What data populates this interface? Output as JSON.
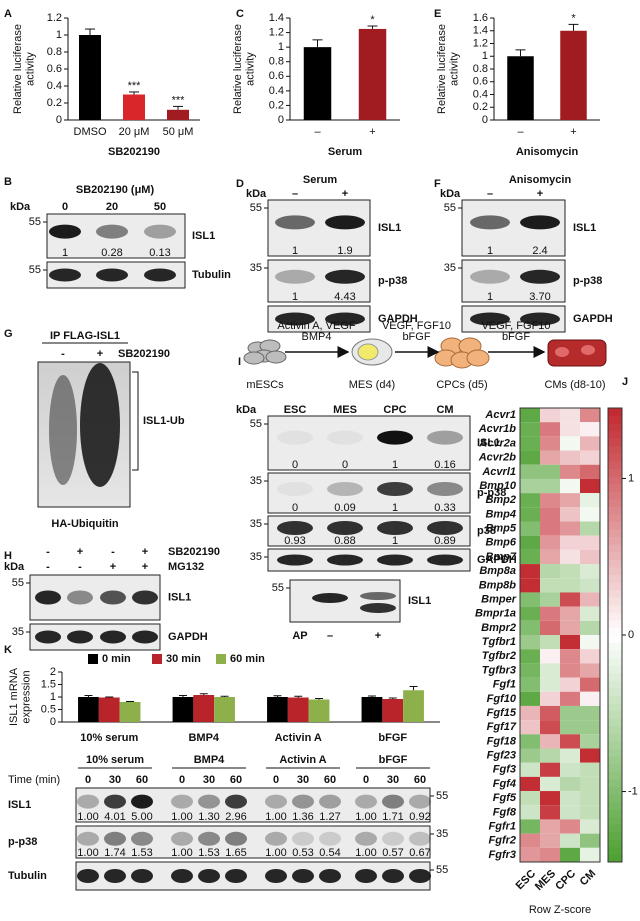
{
  "panel_labels": [
    "A",
    "B",
    "C",
    "D",
    "E",
    "F",
    "G",
    "H",
    "I",
    "J",
    "K"
  ],
  "chart_data": [
    {
      "type": "bar",
      "y_label": "Relative luciferase activity",
      "x_label": "SB202190",
      "categories": [
        "DMSO",
        "20 μM",
        "50 μM"
      ],
      "values": [
        1,
        0.3,
        0.12
      ],
      "errors": [
        0.07,
        0.03,
        0.04
      ],
      "annotations": [
        null,
        "***",
        "***"
      ],
      "colors": [
        "#000000",
        "#d9262b",
        "#a01c20"
      ],
      "ylim": [
        0,
        1.2
      ],
      "yticks": [
        0,
        0.2,
        0.4,
        0.6,
        0.8,
        1,
        1.2
      ]
    },
    {
      "type": "bar",
      "y_label": "Relative luciferase activity",
      "x_label": "Serum",
      "categories": [
        "–",
        "+"
      ],
      "values": [
        1,
        1.25
      ],
      "errors": [
        0.1,
        0.04
      ],
      "annotations": [
        null,
        "*"
      ],
      "colors": [
        "#000000",
        "#a01c20"
      ],
      "ylim": [
        0,
        1.4
      ],
      "yticks": [
        0,
        0.2,
        0.4,
        0.6,
        0.8,
        1,
        1.2,
        1.4
      ]
    },
    {
      "type": "bar",
      "y_label": "Relative luciferase activity",
      "x_label": "Anisomycin",
      "categories": [
        "–",
        "+"
      ],
      "values": [
        1,
        1.4
      ],
      "errors": [
        0.1,
        0.1
      ],
      "annotations": [
        null,
        "*"
      ],
      "colors": [
        "#000000",
        "#a01c20"
      ],
      "ylim": [
        0,
        1.6
      ],
      "yticks": [
        0,
        0.2,
        0.4,
        0.6,
        0.8,
        1,
        1.2,
        1.4,
        1.6
      ]
    },
    {
      "type": "grouped_bar",
      "y_label": "ISL1 mRNA expression",
      "categories": [
        "10% serum",
        "BMP4",
        "Activin A",
        "bFGF"
      ],
      "series": [
        {
          "name": "0 min",
          "color": "#000000",
          "values": [
            1,
            1,
            1,
            1
          ],
          "errors": [
            0.06,
            0.06,
            0.05,
            0.04
          ]
        },
        {
          "name": "30 min",
          "color": "#b8242a",
          "values": [
            0.98,
            1.08,
            0.98,
            0.92
          ],
          "errors": [
            0.02,
            0.05,
            0.05,
            0.04
          ]
        },
        {
          "name": "60 min",
          "color": "#8db04a",
          "values": [
            0.8,
            1.0,
            0.9,
            1.27
          ],
          "errors": [
            0.02,
            0.03,
            0.04,
            0.15
          ]
        }
      ],
      "ylim": [
        0,
        2
      ],
      "yticks": [
        0,
        0.5,
        1,
        1.5,
        2
      ],
      "legend": "top"
    },
    {
      "type": "heatmap",
      "colorbar_label": "Row Z-score",
      "rows": [
        "Acvr1",
        "Acvr1b",
        "Acvr2a",
        "Acvr2b",
        "Acvrl1",
        "Bmp10",
        "Bmp2",
        "Bmp4",
        "Bmp5",
        "Bmp6",
        "Bmp7",
        "Bmp8a",
        "Bmp8b",
        "Bmper",
        "Bmpr1a",
        "Bmpr2",
        "Tgfbr1",
        "Tgfbr2",
        "Tgfbr3",
        "Fgf1",
        "Fgf10",
        "Fgf15",
        "Fgf17",
        "Fgf18",
        "Fgf23",
        "Fgf3",
        "Fgf4",
        "Fgf5",
        "Fgf8",
        "Fgfr1",
        "Fgfr2",
        "Fgfr3"
      ],
      "columns": [
        "ESC",
        "MES",
        "CPC",
        "CM"
      ],
      "values": [
        [
          -1.3,
          0.3,
          0.2,
          0.8
        ],
        [
          -1.2,
          0.9,
          0.2,
          0.1
        ],
        [
          -1.2,
          0.8,
          -0.1,
          0.5
        ],
        [
          -1.3,
          0.6,
          0.4,
          0.3
        ],
        [
          -0.9,
          -0.9,
          0.8,
          1.0
        ],
        [
          -0.7,
          -0.7,
          -0.1,
          1.4
        ],
        [
          -1.2,
          0.8,
          0.6,
          -0.2
        ],
        [
          -1.2,
          0.9,
          0.4,
          -0.1
        ],
        [
          -1.0,
          0.9,
          0.7,
          -0.6
        ],
        [
          -1.3,
          0.7,
          0.3,
          0.3
        ],
        [
          -1.2,
          0.6,
          0.2,
          0.4
        ],
        [
          1.4,
          -0.6,
          -0.5,
          -0.3
        ],
        [
          1.4,
          -0.5,
          -0.5,
          -0.4
        ],
        [
          -1.0,
          -0.7,
          1.2,
          0.5
        ],
        [
          -1.2,
          0.9,
          0.6,
          -0.3
        ],
        [
          -1.0,
          1.0,
          0.6,
          -0.6
        ],
        [
          -0.8,
          -0.5,
          1.4,
          -0.1
        ],
        [
          -1.2,
          0.1,
          0.8,
          0.3
        ],
        [
          -1.1,
          -0.3,
          0.8,
          0.6
        ],
        [
          -1.0,
          -0.3,
          0.3,
          1.0
        ],
        [
          -1.3,
          0.3,
          0.9,
          0.1
        ],
        [
          0.5,
          1.1,
          -0.8,
          -0.8
        ],
        [
          0.4,
          1.2,
          -0.8,
          -0.8
        ],
        [
          -1.0,
          0.5,
          1.2,
          -0.7
        ],
        [
          -0.8,
          -0.6,
          -0.3,
          1.4
        ],
        [
          -0.4,
          1.3,
          -0.4,
          -0.5
        ],
        [
          1.4,
          -0.3,
          -0.6,
          -0.5
        ],
        [
          -0.5,
          1.4,
          -0.4,
          -0.5
        ],
        [
          -0.4,
          1.3,
          -0.4,
          -0.5
        ],
        [
          -1.1,
          0.6,
          0.8,
          -0.3
        ],
        [
          0.8,
          0.6,
          -0.4,
          -0.9
        ],
        [
          0.7,
          0.8,
          -1.3,
          -0.2
        ]
      ],
      "clim": [
        -1.45,
        1.45
      ],
      "cticks": [
        1,
        0,
        -1
      ],
      "colors": [
        "#4b9f2f",
        "#ffffff",
        "#c1272d"
      ]
    }
  ],
  "blots": {
    "B": {
      "title": "SB202190 (μM)",
      "kda": "kDa",
      "lanes": [
        "0",
        "20",
        "50"
      ],
      "rows": [
        {
          "marker": "55",
          "label": "ISL1",
          "quant": [
            "1",
            "0.28",
            "0.13"
          ]
        },
        {
          "marker": "55",
          "label": "Tubulin"
        }
      ]
    },
    "D": {
      "title": "Serum",
      "kda": "kDa",
      "lanes": [
        "–",
        "+"
      ],
      "rows": [
        {
          "marker": "55",
          "label": "ISL1",
          "quant": [
            "1",
            "1.9"
          ]
        },
        {
          "marker": "35",
          "label": "p-p38",
          "quant": [
            "1",
            "4.43"
          ]
        },
        {
          "label": "GAPDH"
        }
      ]
    },
    "F": {
      "title": "Anisomycin",
      "kda": "kDa",
      "lanes": [
        "–",
        "+"
      ],
      "rows": [
        {
          "marker": "55",
          "label": "ISL1",
          "quant": [
            "1",
            "2.4"
          ]
        },
        {
          "marker": "35",
          "label": "p-p38",
          "quant": [
            "1",
            "3.70"
          ]
        },
        {
          "label": "GAPDH"
        }
      ]
    },
    "G": {
      "title": "IP FLAG-ISL1",
      "lanes": [
        "-",
        "+"
      ],
      "treatment": "SB202190",
      "band_label": "ISL1-Ub",
      "antibody": "HA-Ubiquitin"
    },
    "H": {
      "kda": "kDa",
      "treatments": [
        {
          "name": "SB202190",
          "signs": [
            "-",
            "+",
            "-",
            "+"
          ]
        },
        {
          "name": "MG132",
          "signs": [
            "-",
            "-",
            "+",
            "+"
          ]
        }
      ],
      "rows": [
        {
          "marker": "55",
          "label": "ISL1"
        },
        {
          "marker": "35",
          "label": "GAPDH"
        }
      ]
    },
    "I": {
      "stages": [
        "mESCs",
        "MES (d4)",
        "CPCs (d5)",
        "CMs (d8-10)"
      ],
      "factors": [
        [
          "Activin A, VEGF",
          "BMP4"
        ],
        [
          "VEGF, FGF10",
          "bFGF"
        ],
        [
          "VEGF, FGF10",
          "bFGF"
        ]
      ],
      "kda": "kDa",
      "lanes": [
        "ESC",
        "MES",
        "CPC",
        "CM"
      ],
      "rows": [
        {
          "marker": "55",
          "label": "ISL1",
          "quant": [
            "0",
            "0",
            "1",
            "0.16"
          ]
        },
        {
          "marker": "35",
          "label": "p-p38",
          "quant": [
            "0",
            "0.09",
            "1",
            "0.33"
          ]
        },
        {
          "marker": "35",
          "label": "p38",
          "quant": [
            "0.93",
            "0.88",
            "1",
            "0.89"
          ]
        },
        {
          "marker": "35",
          "label": "GAPDH"
        }
      ],
      "ap_blot": {
        "marker": "55",
        "label": "ISL1",
        "treatment": "AP",
        "lanes": [
          "–",
          "+"
        ]
      }
    },
    "K": {
      "time_label": "Time (min)",
      "times": [
        "0",
        "30",
        "60"
      ],
      "rows": [
        {
          "marker": "55",
          "label": "ISL1",
          "quant": [
            "1.00",
            "4.01",
            "5.00",
            "1.00",
            "1.30",
            "2.96",
            "1.00",
            "1.36",
            "1.27",
            "1.00",
            "1.71",
            "0.92"
          ]
        },
        {
          "marker": "35",
          "label": "p-p38",
          "quant": [
            "1.00",
            "1.74",
            "1.53",
            "1.00",
            "1.53",
            "1.65",
            "1.00",
            "0.53",
            "0.54",
            "1.00",
            "0.57",
            "0.67"
          ]
        },
        {
          "marker": "55",
          "label": "Tubulin"
        }
      ]
    }
  }
}
